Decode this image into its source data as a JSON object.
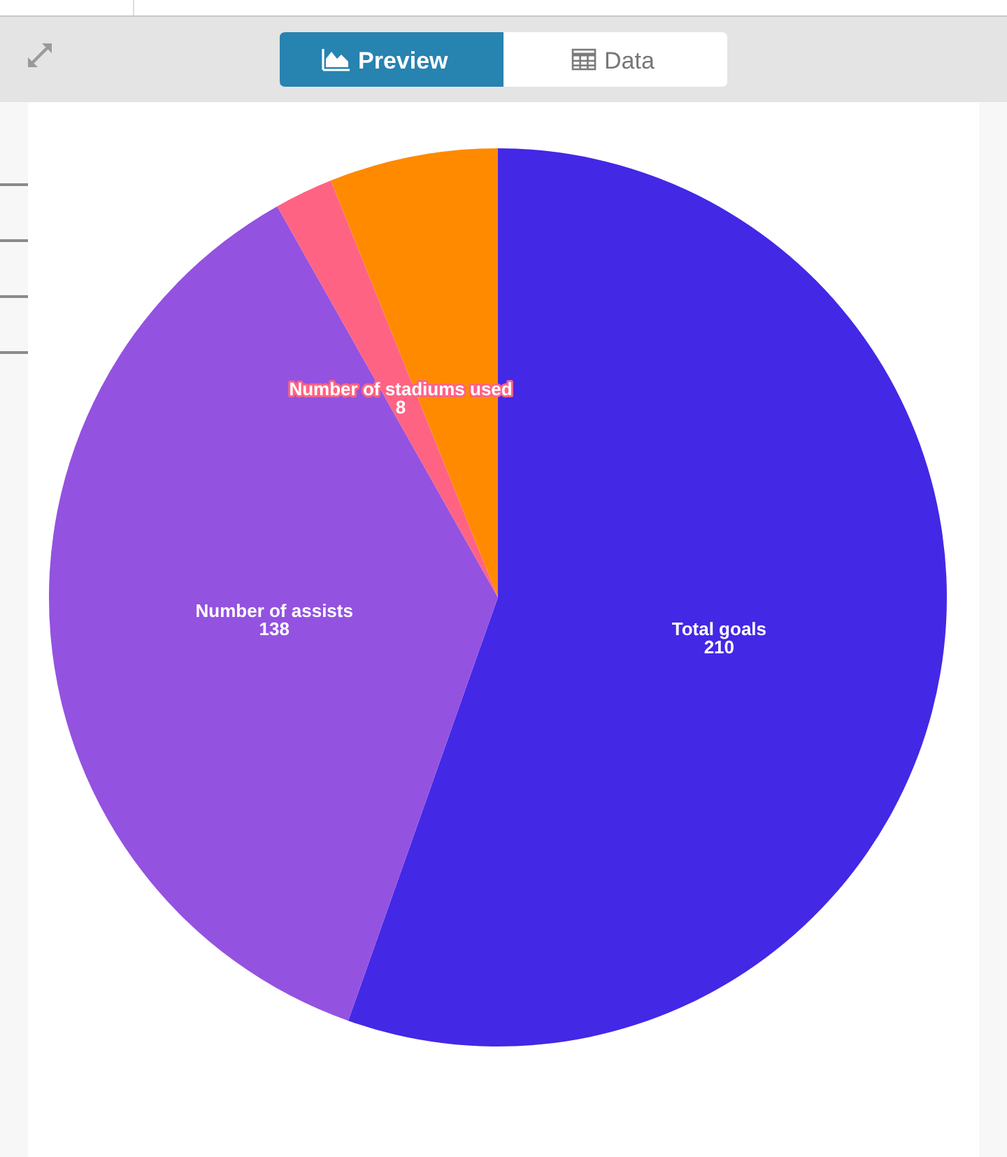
{
  "chart_data": {
    "type": "pie",
    "categories": [
      "Total goals",
      "Number of assists",
      "Number of stadiums used",
      null
    ],
    "values": [
      210,
      138,
      8,
      23
    ],
    "colors": [
      "#4328e6",
      "#9452e0",
      "#ff6384",
      "#ff8a00"
    ],
    "value_labels": [
      "210",
      "138",
      "8",
      null
    ],
    "annotations": [
      "Preview",
      "Data"
    ]
  }
}
